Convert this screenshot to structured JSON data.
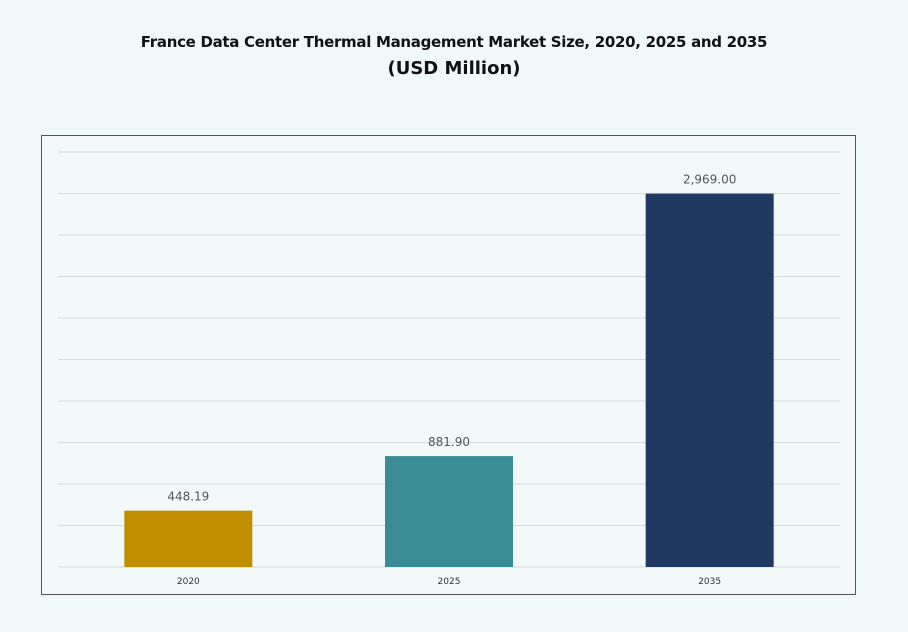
{
  "chart_data": {
    "type": "bar",
    "title": "France Data Center Thermal Management Market Size, 2020, 2025 and 2035",
    "subtitle": "(USD Million)",
    "categories": [
      "2020",
      "2025",
      "2035"
    ],
    "values": [
      448.19,
      881.9,
      2969.0
    ],
    "data_labels": [
      "448.19",
      "881.90",
      "2,969.00"
    ],
    "colors": [
      "#c08e00",
      "#3a8c94",
      "#1f3962"
    ],
    "xlabel": "",
    "ylabel": "",
    "ylim": [
      0,
      3300
    ],
    "y_axis_visible": false,
    "grid": true,
    "legend": "none"
  }
}
